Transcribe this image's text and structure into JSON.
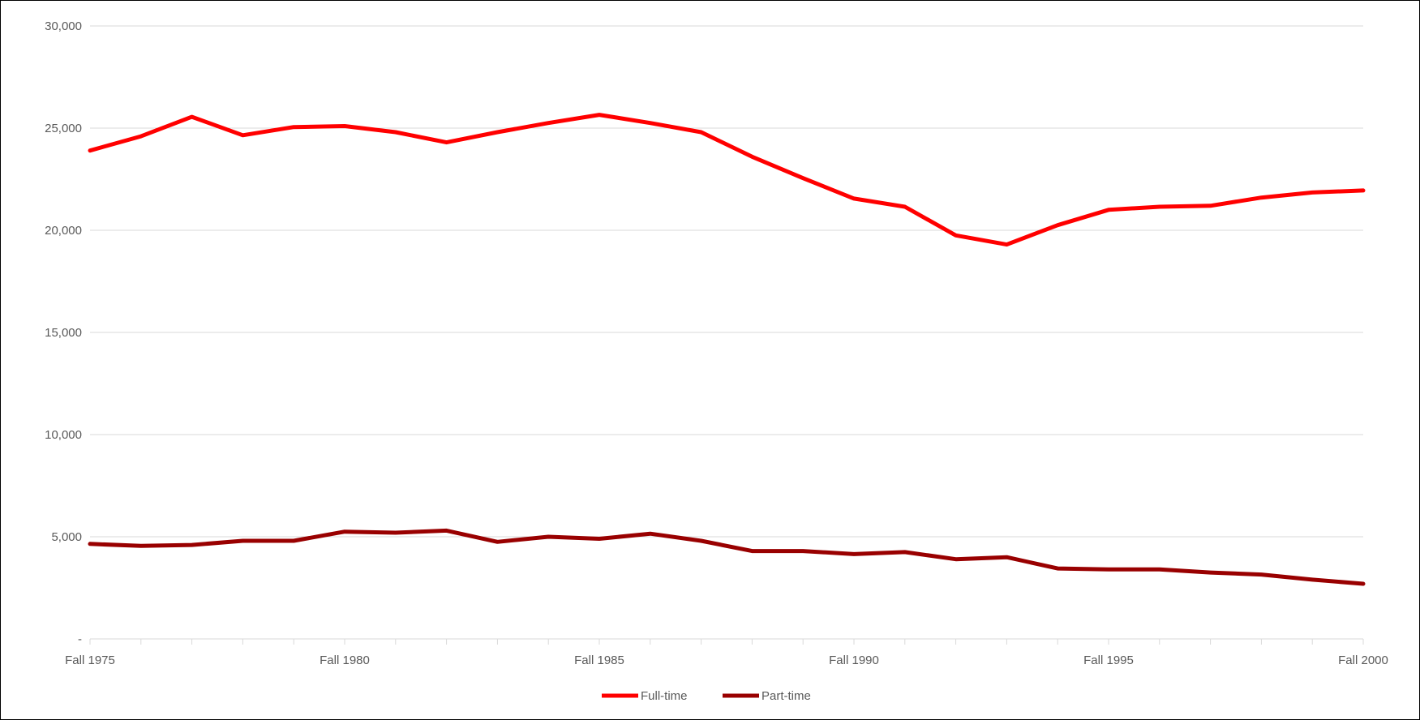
{
  "chart_data": {
    "type": "line",
    "title": "",
    "xlabel": "",
    "ylabel": "",
    "categories": [
      "Fall 1975",
      "Fall 1976",
      "Fall 1977",
      "Fall 1978",
      "Fall 1979",
      "Fall 1980",
      "Fall 1981",
      "Fall 1982",
      "Fall 1983",
      "Fall 1984",
      "Fall 1985",
      "Fall 1986",
      "Fall 1987",
      "Fall 1988",
      "Fall 1989",
      "Fall 1990",
      "Fall 1991",
      "Fall 1992",
      "Fall 1993",
      "Fall 1994",
      "Fall 1995",
      "Fall 1996",
      "Fall 1997",
      "Fall 1998",
      "Fall 1999",
      "Fall 2000"
    ],
    "x_tick_labels": [
      "Fall 1975",
      "Fall 1980",
      "Fall 1985",
      "Fall 1990",
      "Fall 1995",
      "Fall 2000"
    ],
    "y_tick_labels": [
      "-",
      "5,000",
      "10,000",
      "15,000",
      "20,000",
      "25,000",
      "30,000"
    ],
    "ylim": [
      0,
      30000
    ],
    "grid": true,
    "legend_position": "bottom",
    "series": [
      {
        "name": "Full-time",
        "color": "#ff0000",
        "values": [
          23900,
          24600,
          25550,
          24650,
          25050,
          25100,
          24800,
          24300,
          24800,
          25250,
          25650,
          25250,
          24800,
          23600,
          22550,
          21550,
          21150,
          19750,
          19300,
          20250,
          21000,
          21150,
          21200,
          21600,
          21850,
          21950
        ]
      },
      {
        "name": "Part-time",
        "color": "#990000",
        "values": [
          4650,
          4550,
          4600,
          4800,
          4800,
          5250,
          5200,
          5300,
          4750,
          5000,
          4900,
          5150,
          4800,
          4300,
          4300,
          4150,
          4250,
          3900,
          4000,
          3450,
          3400,
          3400,
          3250,
          3150,
          2900,
          2700
        ]
      }
    ]
  }
}
